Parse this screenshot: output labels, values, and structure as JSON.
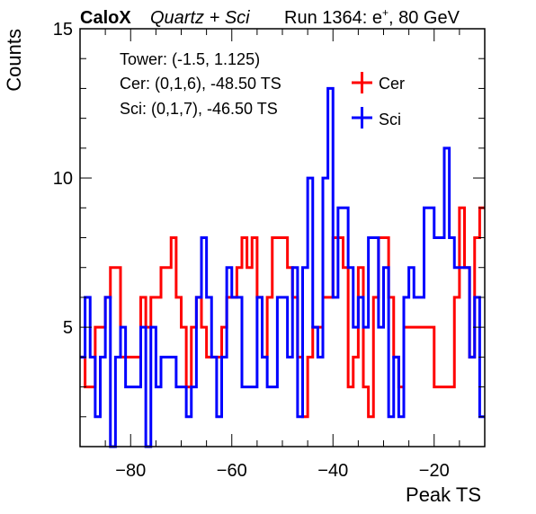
{
  "header": {
    "experiment": "CaloX",
    "config": "Quartz + Sci",
    "run_prefix": "Run 1364: e",
    "run_sup": "+",
    "run_suffix": ", 80 GeV"
  },
  "info": {
    "line1": "Tower: (-1.5, 1.125)",
    "line2": "Cer: (0,1,6), -48.50 TS",
    "line3": "Sci: (0,1,7), -46.50 TS"
  },
  "chart_data": {
    "type": "histogram",
    "xlabel": "Peak TS",
    "ylabel": "Counts",
    "xlim": [
      -90,
      -10
    ],
    "ylim": [
      1,
      15
    ],
    "x_ticks": [
      -80,
      -60,
      -40,
      -20
    ],
    "x_tick_labels": [
      "−80",
      "−60",
      "−40",
      "−20"
    ],
    "y_ticks": [
      5,
      10,
      15
    ],
    "y_tick_labels": [
      "5",
      "10",
      "15"
    ],
    "bin_width": 1,
    "x_start": -90,
    "legend_position": "top-right",
    "series": [
      {
        "name": "Cer",
        "color": "#ff0000",
        "values": [
          4,
          3,
          3,
          5,
          5,
          6,
          7,
          7,
          4,
          4,
          4,
          4,
          6,
          5,
          6,
          6,
          7,
          7,
          8,
          6,
          5,
          3,
          5,
          6,
          5,
          4,
          4,
          4,
          5,
          6,
          6,
          7,
          8,
          7,
          8,
          6,
          4,
          6,
          8,
          8,
          8,
          7,
          6,
          4,
          2,
          4,
          5,
          5,
          6,
          6,
          8,
          8,
          7,
          3,
          4,
          7,
          3,
          2,
          6,
          8,
          8,
          6,
          4,
          3,
          5,
          5,
          5,
          5,
          5,
          5,
          3,
          3,
          3,
          3,
          6,
          9,
          7,
          4,
          8,
          9
        ]
      },
      {
        "name": "Sci",
        "color": "#0000ff",
        "values": [
          4,
          6,
          4,
          2,
          4,
          6,
          1,
          4,
          5,
          3,
          3,
          3,
          5,
          1,
          5,
          3,
          4,
          4,
          4,
          3,
          3,
          2,
          3,
          6,
          8,
          6,
          4,
          2,
          4,
          7,
          6,
          6,
          3,
          3,
          3,
          6,
          4,
          3,
          3,
          6,
          6,
          4,
          7,
          2,
          7,
          10,
          5,
          4,
          10,
          13,
          6,
          9,
          9,
          7,
          5,
          6,
          5,
          8,
          8,
          5,
          7,
          2,
          4,
          2,
          6,
          7,
          6,
          6,
          9,
          9,
          8,
          8,
          11,
          8,
          7,
          7,
          7,
          4,
          6,
          2
        ]
      }
    ]
  }
}
